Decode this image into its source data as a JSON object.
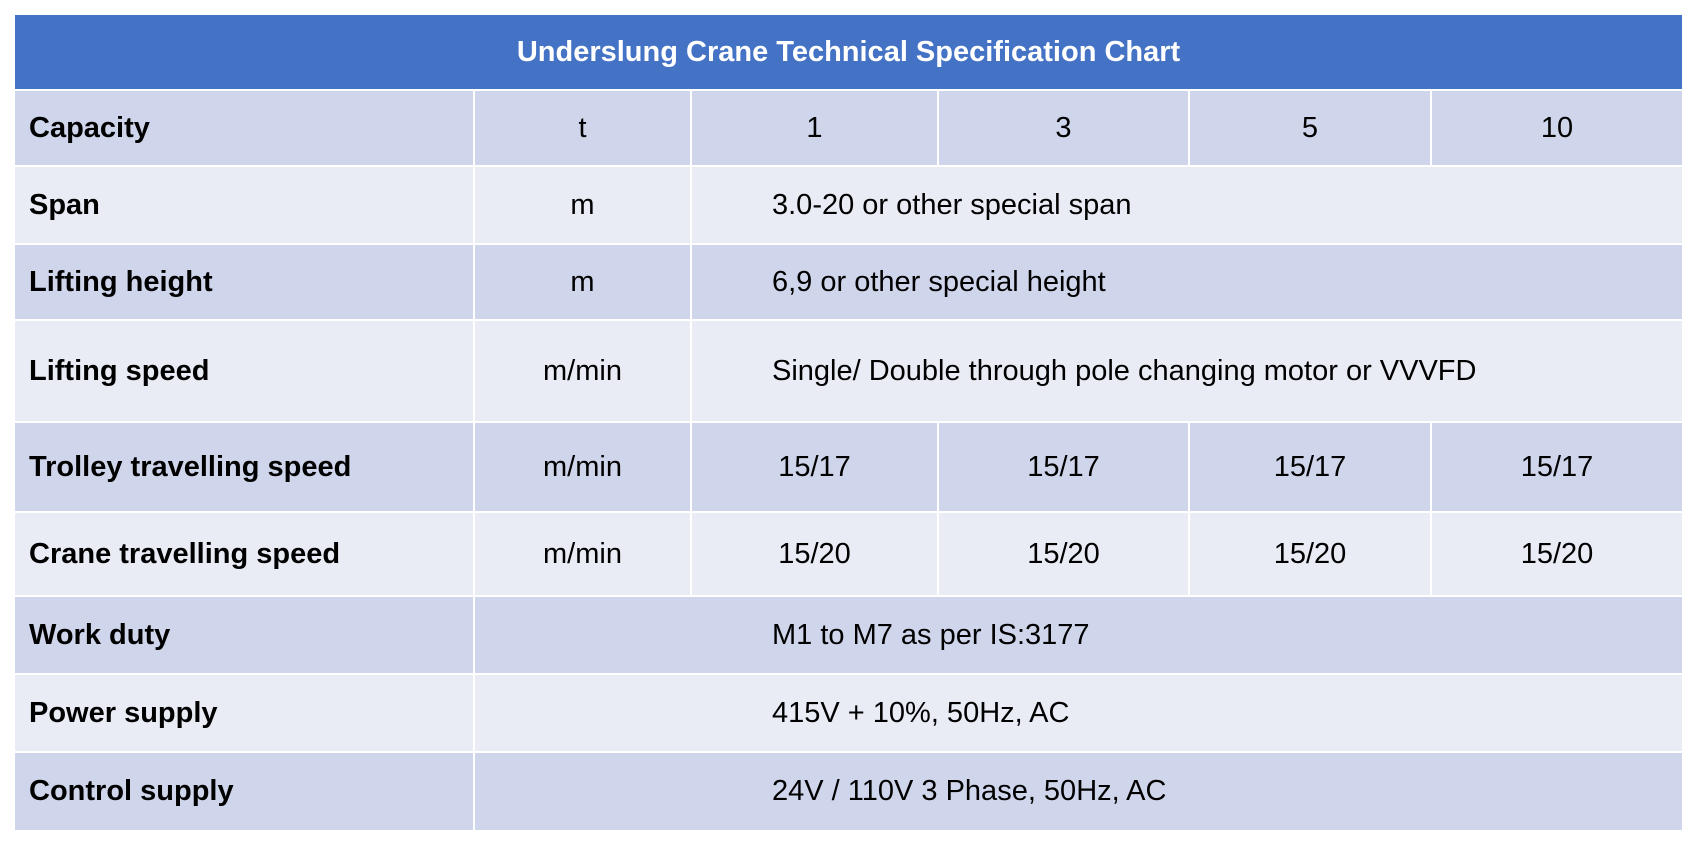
{
  "title": "Underslung Crane Technical Specification Chart",
  "table": {
    "rows": [
      [
        "Capacity",
        "t",
        "1",
        "3",
        "5",
        "10"
      ],
      [
        "Span",
        "m",
        "3.0-20 or other special span"
      ],
      [
        "Lifting height",
        "m",
        "6,9 or other special height"
      ],
      [
        "Lifting speed",
        "m/min",
        "Single/ Double through pole changing motor or VVVFD"
      ],
      [
        "Trolley travelling speed",
        "m/min",
        "15/17",
        "15/17",
        "15/17",
        "15/17"
      ],
      [
        "Crane travelling speed",
        "m/min",
        "15/20",
        "15/20",
        "15/20",
        "15/20"
      ],
      [
        "Work duty",
        "M1 to M7 as per IS:3177"
      ],
      [
        "Power supply",
        "415V + 10%, 50Hz, AC"
      ],
      [
        "Control supply",
        "24V / 110V 3 Phase, 50Hz, AC"
      ]
    ]
  }
}
